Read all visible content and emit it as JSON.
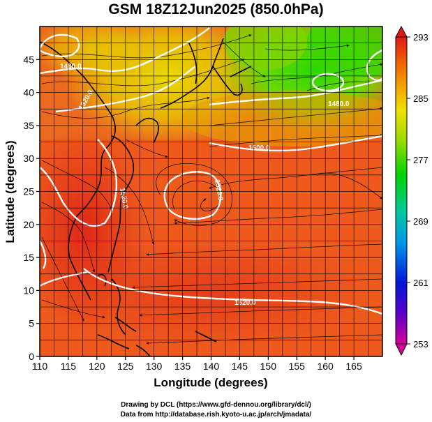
{
  "title": "GSM 18Z12Jun2025 (850.0hPa)",
  "x_axis": {
    "label": "Longitude (degrees)",
    "range": [
      110,
      170
    ],
    "ticks": [
      110,
      115,
      120,
      125,
      130,
      135,
      140,
      145,
      150,
      155,
      160,
      165
    ]
  },
  "y_axis": {
    "label": "Latitude (degrees)",
    "range": [
      0,
      50
    ],
    "ticks": [
      0,
      5,
      10,
      15,
      20,
      25,
      30,
      35,
      40,
      45
    ]
  },
  "colorbar": {
    "range": [
      253,
      293
    ],
    "ticks": [
      253,
      261,
      269,
      277,
      285,
      293
    ],
    "colors": [
      "#d4009a",
      "#5a00c8",
      "#0018d8",
      "#0096e8",
      "#00c8a0",
      "#00d200",
      "#96dc00",
      "#f0e000",
      "#f5a000",
      "#ee6000",
      "#e01818"
    ]
  },
  "contours": [
    {
      "label": "1460.0"
    },
    {
      "label": "1480.0"
    },
    {
      "label": "1500.0"
    },
    {
      "label": "1520.0"
    },
    {
      "label": "1520.0"
    },
    {
      "label": "1520.0"
    },
    {
      "label": "1520.0"
    }
  ],
  "credits": {
    "line1": "Drawing by DCL (https://www.gfd-dennou.org/library/dcl/)",
    "line2": "Data from http://database.rish.kyoto-u.ac.jp/arch/jmadata/"
  }
}
